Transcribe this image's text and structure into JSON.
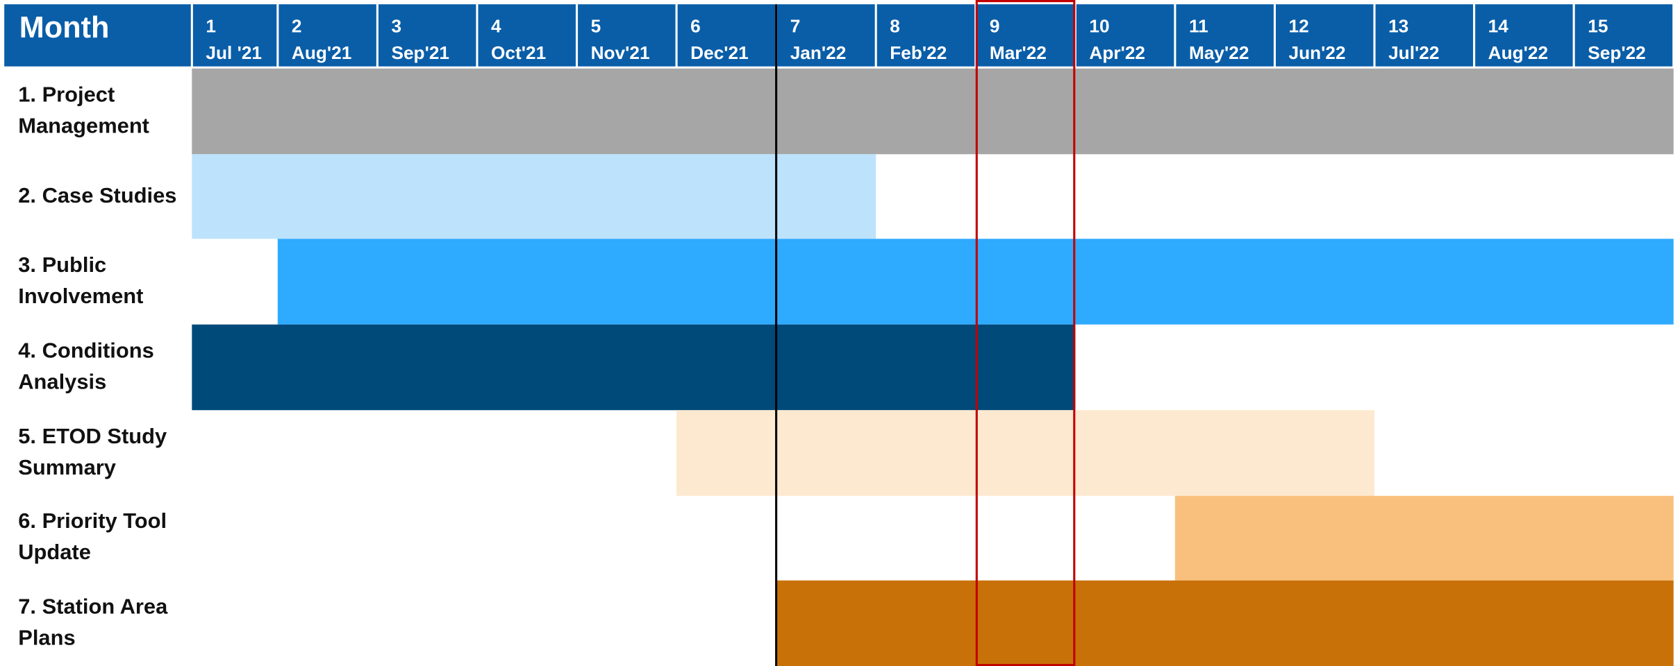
{
  "chart_data": {
    "type": "gantt",
    "header": "Month",
    "months": [
      {
        "number": "1",
        "label": "Jul '21"
      },
      {
        "number": "2",
        "label": "Aug'21"
      },
      {
        "number": "3",
        "label": "Sep'21"
      },
      {
        "number": "4",
        "label": "Oct'21"
      },
      {
        "number": "5",
        "label": "Nov'21"
      },
      {
        "number": "6",
        "label": "Dec'21"
      },
      {
        "number": "7",
        "label": "Jan'22"
      },
      {
        "number": "8",
        "label": "Feb'22"
      },
      {
        "number": "9",
        "label": "Mar'22"
      },
      {
        "number": "10",
        "label": "Apr'22"
      },
      {
        "number": "11",
        "label": "May'22"
      },
      {
        "number": "12",
        "label": "Jun'22"
      },
      {
        "number": "13",
        "label": "Jul'22"
      },
      {
        "number": "14",
        "label": "Aug'22"
      },
      {
        "number": "15",
        "label": "Sep'22"
      }
    ],
    "tasks": [
      {
        "name": "1. Project Management",
        "start": 1,
        "end": 15,
        "color": "#a6a6a6"
      },
      {
        "name": "2. Case Studies",
        "start": 1,
        "end": 7,
        "color": "#bde3fc"
      },
      {
        "name": "3. Public Involvement",
        "start": 2,
        "end": 15,
        "color": "#2eaaff"
      },
      {
        "name": "4. Conditions Analysis",
        "start": 1,
        "end": 9,
        "color": "#004a7a"
      },
      {
        "name": "5. ETOD Study Summary",
        "start": 6,
        "end": 12,
        "color": "#fde9d0"
      },
      {
        "name": "6. Priority Tool Update",
        "start": 11,
        "end": 15,
        "color": "#f8c07c"
      },
      {
        "name": "7. Station Area Plans",
        "start": 7,
        "end": 15,
        "color": "#c87109"
      }
    ],
    "today_month": 7,
    "highlight_month": 9,
    "today_color": "#000000",
    "highlight_color": "#c00000"
  }
}
